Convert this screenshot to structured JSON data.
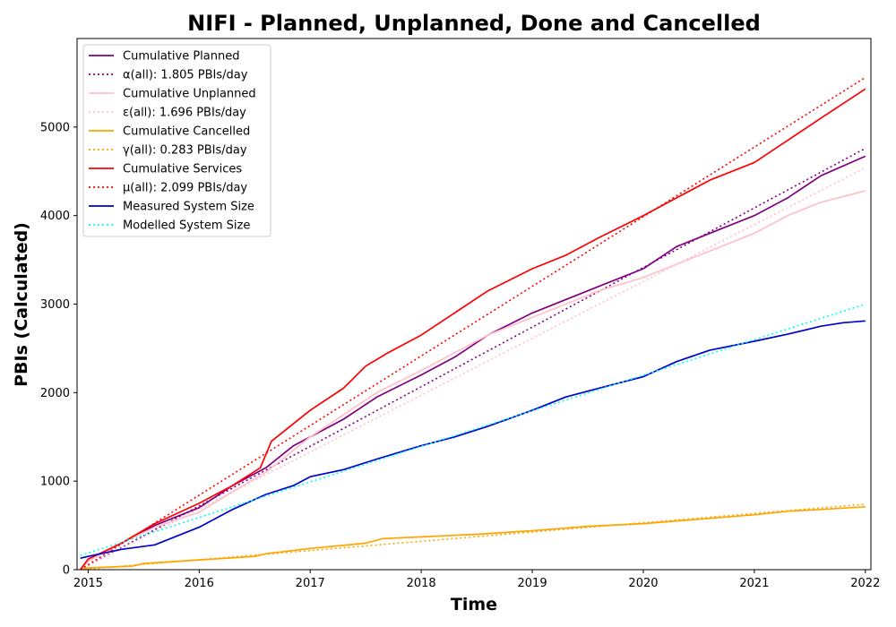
{
  "chart_data": {
    "type": "line",
    "title": "NIFI - Planned, Unplanned, Done  and Cancelled",
    "xlabel": "Time",
    "ylabel": "PBIs (Calculated)",
    "xlim": [
      2014.9,
      2022.05
    ],
    "ylim": [
      0,
      6000
    ],
    "xticks": [
      {
        "value": 2015,
        "label": "2015"
      },
      {
        "value": 2016,
        "label": "2016"
      },
      {
        "value": 2017,
        "label": "2017"
      },
      {
        "value": 2018,
        "label": "2018"
      },
      {
        "value": 2019,
        "label": "2019"
      },
      {
        "value": 2020,
        "label": "2020"
      },
      {
        "value": 2021,
        "label": "2021"
      },
      {
        "value": 2022,
        "label": "2022"
      }
    ],
    "yticks": [
      {
        "value": 0,
        "label": "0"
      },
      {
        "value": 1000,
        "label": "1000"
      },
      {
        "value": 2000,
        "label": "2000"
      },
      {
        "value": 3000,
        "label": "3000"
      },
      {
        "value": 4000,
        "label": "4000"
      },
      {
        "value": 5000,
        "label": "5000"
      }
    ],
    "grid": false,
    "legend_position": "top-left",
    "series": [
      {
        "key": "cumulative-planned",
        "name": "Cumulative Planned",
        "color": "#800080",
        "style": "solid",
        "x": [
          2014.93,
          2015.0,
          2015.3,
          2015.6,
          2016.0,
          2016.3,
          2016.6,
          2016.85,
          2017.0,
          2017.3,
          2017.6,
          2018.0,
          2018.3,
          2018.6,
          2019.0,
          2019.3,
          2019.6,
          2020.0,
          2020.3,
          2020.6,
          2021.0,
          2021.3,
          2021.6,
          2022.0
        ],
        "y": [
          0,
          100,
          300,
          500,
          700,
          950,
          1150,
          1400,
          1500,
          1700,
          1950,
          2200,
          2400,
          2650,
          2900,
          3050,
          3200,
          3400,
          3650,
          3800,
          4000,
          4200,
          4450,
          4670
        ]
      },
      {
        "key": "alpha-fit",
        "name": "α(all): 1.805 PBIs/day",
        "color": "#800080",
        "style": "dotted",
        "x": [
          2014.93,
          2022.0
        ],
        "y": [
          0,
          4760
        ]
      },
      {
        "key": "cumulative-unplanned",
        "name": "Cumulative Unplanned",
        "color": "#ffc0cb",
        "style": "solid",
        "x": [
          2014.93,
          2015.0,
          2015.3,
          2015.6,
          2016.0,
          2016.3,
          2016.6,
          2016.85,
          2017.0,
          2017.3,
          2017.6,
          2018.0,
          2018.3,
          2018.6,
          2019.0,
          2019.3,
          2019.6,
          2020.0,
          2020.3,
          2020.6,
          2021.0,
          2021.3,
          2021.6,
          2022.0
        ],
        "y": [
          0,
          100,
          300,
          480,
          650,
          880,
          1100,
          1350,
          1500,
          1750,
          2000,
          2250,
          2450,
          2650,
          2850,
          3000,
          3150,
          3300,
          3450,
          3600,
          3800,
          4000,
          4150,
          4280
        ]
      },
      {
        "key": "epsilon-fit",
        "name": "ε(all): 1.696 PBIs/day",
        "color": "#ffc0cb",
        "style": "dotted",
        "x": [
          2014.93,
          2022.0
        ],
        "y": [
          0,
          4540
        ]
      },
      {
        "key": "cumulative-cancelled",
        "name": "Cumulative Cancelled",
        "color": "#ffa500",
        "style": "solid",
        "x": [
          2014.93,
          2015.0,
          2015.4,
          2015.5,
          2016.0,
          2016.5,
          2016.6,
          2017.0,
          2017.5,
          2017.65,
          2018.0,
          2018.5,
          2019.0,
          2019.5,
          2020.0,
          2020.5,
          2021.0,
          2021.3,
          2021.6,
          2022.0
        ],
        "y": [
          0,
          20,
          40,
          70,
          110,
          150,
          180,
          240,
          300,
          350,
          370,
          400,
          440,
          490,
          520,
          570,
          620,
          660,
          680,
          710
        ]
      },
      {
        "key": "gamma-fit",
        "name": "γ(all): 0.283 PBIs/day",
        "color": "#ffa500",
        "style": "dotted",
        "x": [
          2014.93,
          2022.0
        ],
        "y": [
          0,
          740
        ]
      },
      {
        "key": "cumulative-services",
        "name": "Cumulative Services",
        "color": "#ff0000",
        "style": "solid",
        "x": [
          2014.93,
          2015.0,
          2015.3,
          2015.6,
          2016.0,
          2016.3,
          2016.55,
          2016.65,
          2017.0,
          2017.3,
          2017.5,
          2017.7,
          2018.0,
          2018.3,
          2018.6,
          2019.0,
          2019.3,
          2019.6,
          2020.0,
          2020.3,
          2020.6,
          2021.0,
          2021.3,
          2021.6,
          2022.0
        ],
        "y": [
          0,
          120,
          300,
          520,
          750,
          950,
          1150,
          1450,
          1800,
          2050,
          2300,
          2450,
          2650,
          2900,
          3150,
          3400,
          3550,
          3750,
          4000,
          4200,
          4400,
          4600,
          4850,
          5100,
          5430
        ]
      },
      {
        "key": "mu-fit",
        "name": "μ(all): 2.099 PBIs/day",
        "color": "#ff0000",
        "style": "dotted",
        "x": [
          2014.93,
          2022.0
        ],
        "y": [
          0,
          5560
        ]
      },
      {
        "key": "measured-system-size",
        "name": "Measured System Size",
        "color": "#0000cd",
        "style": "solid",
        "x": [
          2014.93,
          2015.0,
          2015.3,
          2015.6,
          2016.0,
          2016.3,
          2016.6,
          2016.85,
          2017.0,
          2017.3,
          2017.6,
          2018.0,
          2018.3,
          2018.6,
          2019.0,
          2019.3,
          2019.6,
          2020.0,
          2020.3,
          2020.6,
          2021.0,
          2021.3,
          2021.6,
          2021.8,
          2022.0
        ],
        "y": [
          130,
          150,
          230,
          280,
          480,
          680,
          850,
          950,
          1050,
          1130,
          1250,
          1400,
          1500,
          1620,
          1800,
          1950,
          2050,
          2180,
          2350,
          2480,
          2580,
          2660,
          2750,
          2790,
          2810
        ]
      },
      {
        "key": "modelled-system-size",
        "name": "Modelled System Size",
        "color": "#00ffff",
        "style": "dotted",
        "x": [
          2014.93,
          2022.0
        ],
        "y": [
          160,
          3000
        ]
      }
    ]
  }
}
